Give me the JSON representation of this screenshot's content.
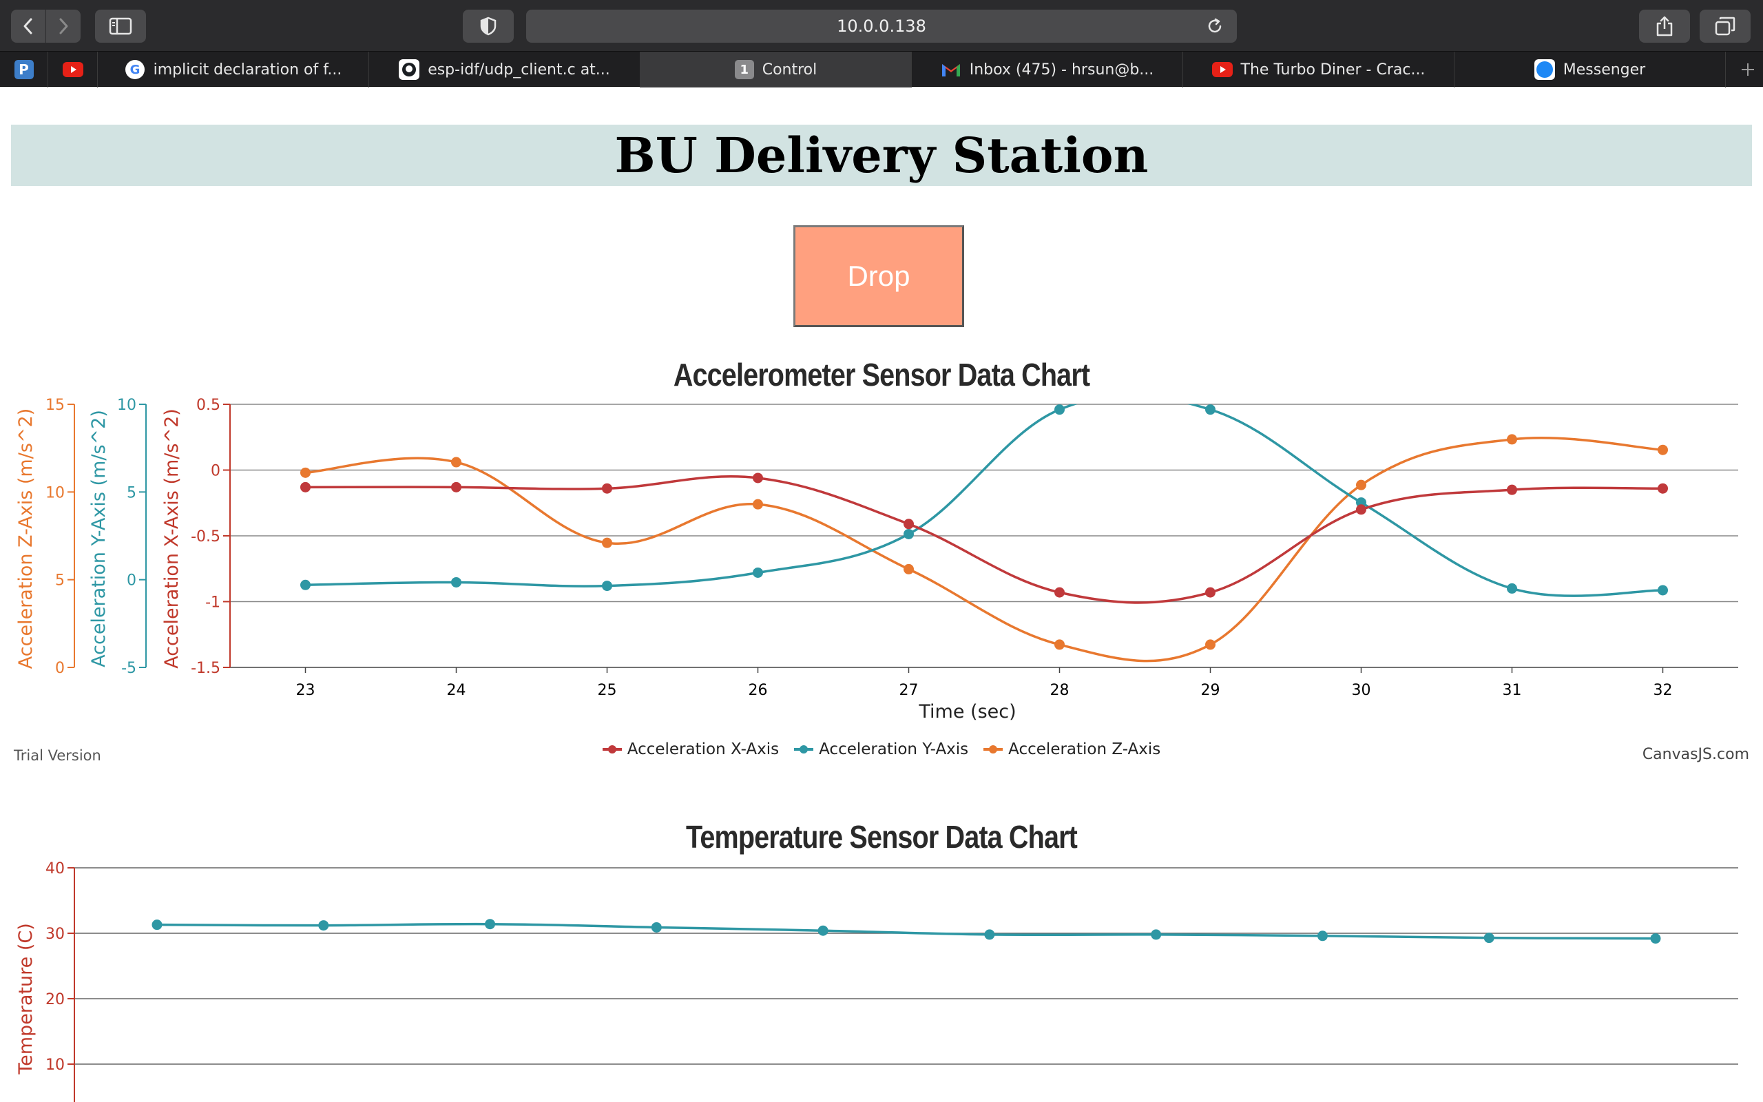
{
  "browser": {
    "url": "10.0.0.138",
    "tabs": [
      {
        "label": "implicit declaration of f...",
        "icon": "google-icon"
      },
      {
        "label": "esp-idf/udp_client.c at...",
        "icon": "github-icon"
      },
      {
        "label": "Control",
        "icon": "tab-number-icon",
        "badge": "1",
        "active": true
      },
      {
        "label": "Inbox (475) - hrsun@b...",
        "icon": "gmail-icon"
      },
      {
        "label": "The Turbo Diner - Crac...",
        "icon": "youtube-icon"
      },
      {
        "label": "Messenger",
        "icon": "messenger-icon"
      }
    ]
  },
  "page": {
    "title": "BU Delivery Station",
    "drop_label": "Drop"
  },
  "accel_chart": {
    "footer_left": "Trial Version",
    "footer_right": "CanvasJS.com"
  },
  "chart_data": [
    {
      "type": "line",
      "title": "Accelerometer Sensor Data Chart",
      "xlabel": "Time (sec)",
      "x": [
        23,
        24,
        25,
        26,
        27,
        28,
        29,
        30,
        31,
        32
      ],
      "xlim": [
        22.5,
        32.5
      ],
      "axes": [
        {
          "id": "x",
          "label": "Acceleration X-Axis (m/s^2)",
          "ylim": [
            -1.5,
            0.5
          ],
          "ticks": [
            0.5,
            0,
            -0.5,
            -1,
            -1.5
          ],
          "color": "#c0392b"
        },
        {
          "id": "y",
          "label": "Acceleration Y-Axis (m/s^2)",
          "ylim": [
            -5,
            10
          ],
          "ticks": [
            10,
            5,
            0,
            -5
          ],
          "color": "#2e97a4"
        },
        {
          "id": "z",
          "label": "Acceleration Z-Axis (m/s^2)",
          "ylim": [
            0,
            15
          ],
          "ticks": [
            15,
            10,
            5,
            0
          ],
          "color": "#e8782f"
        }
      ],
      "series": [
        {
          "name": "Acceleration X-Axis",
          "axis": "x",
          "color": "#c0393b",
          "values": [
            -0.13,
            -0.13,
            -0.14,
            -0.06,
            -0.41,
            -0.93,
            -0.93,
            -0.3,
            -0.15,
            -0.14
          ]
        },
        {
          "name": "Acceleration Y-Axis",
          "axis": "y",
          "color": "#2e97a4",
          "values": [
            -0.3,
            -0.15,
            -0.35,
            0.4,
            2.6,
            9.7,
            9.7,
            4.4,
            -0.5,
            -0.6
          ]
        },
        {
          "name": "Acceleration Z-Axis",
          "axis": "z",
          "color": "#e8782f",
          "values": [
            11.1,
            11.7,
            7.1,
            9.3,
            5.6,
            1.3,
            1.3,
            10.4,
            13.0,
            12.4
          ]
        }
      ],
      "grid": true,
      "legend": "bottom"
    },
    {
      "type": "line",
      "title": "Temperature Sensor Data Chart",
      "ylabel": "Temperature (C)",
      "ylim": [
        0,
        40
      ],
      "yticks": [
        40,
        30,
        20,
        10
      ],
      "series": [
        {
          "name": "",
          "color": "#2e97a4",
          "values": [
            31.3,
            31.2,
            31.4,
            30.9,
            30.4,
            29.8,
            29.8,
            29.6,
            29.3,
            29.2
          ]
        }
      ],
      "grid": true
    }
  ]
}
